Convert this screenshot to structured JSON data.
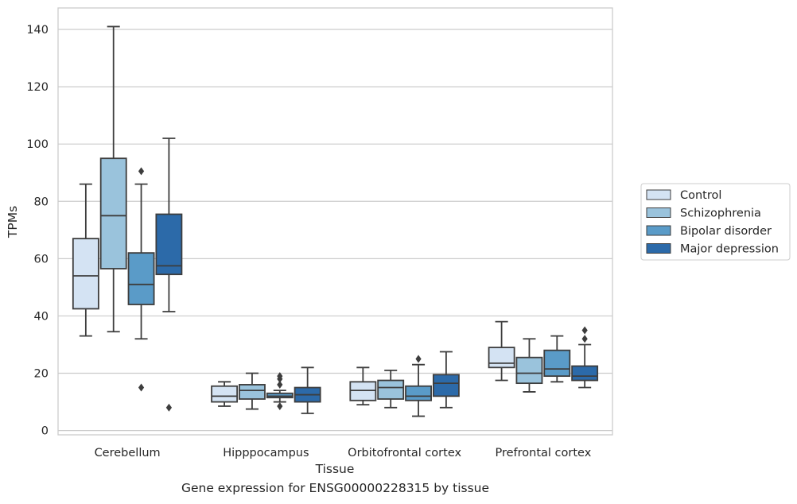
{
  "caption": "Gene expression for ENSG00000228315 by tissue",
  "chart_data": {
    "type": "box",
    "xlabel": "Tissue",
    "ylabel": "TPMs",
    "ylim": [
      -1.5,
      147.5
    ],
    "yticks": [
      0,
      20,
      40,
      60,
      80,
      100,
      120,
      140
    ],
    "grid": true,
    "legend_position": "right",
    "categories": [
      "Cerebellum",
      "Hipppocampus",
      "Orbitofrontal cortex",
      "Prefrontal cortex"
    ],
    "series": [
      {
        "name": "Control",
        "color": "#d4e3f3",
        "boxes": [
          {
            "whislo": 33,
            "q1": 42.5,
            "med": 54,
            "q3": 67,
            "whishi": 86,
            "fliers": []
          },
          {
            "whislo": 8.5,
            "q1": 10,
            "med": 12,
            "q3": 15.5,
            "whishi": 17,
            "fliers": []
          },
          {
            "whislo": 9,
            "q1": 10.5,
            "med": 14,
            "q3": 17,
            "whishi": 22,
            "fliers": []
          },
          {
            "whislo": 17.5,
            "q1": 22,
            "med": 23.5,
            "q3": 29,
            "whishi": 38,
            "fliers": []
          }
        ]
      },
      {
        "name": "Schizophrenia",
        "color": "#9ac3dc",
        "boxes": [
          {
            "whislo": 34.5,
            "q1": 56.5,
            "med": 75,
            "q3": 95,
            "whishi": 141,
            "fliers": []
          },
          {
            "whislo": 7.5,
            "q1": 11,
            "med": 14,
            "q3": 16,
            "whishi": 20,
            "fliers": []
          },
          {
            "whislo": 8,
            "q1": 11,
            "med": 15,
            "q3": 17.5,
            "whishi": 21,
            "fliers": []
          },
          {
            "whislo": 13.5,
            "q1": 16.5,
            "med": 20,
            "q3": 25.5,
            "whishi": 32,
            "fliers": []
          }
        ]
      },
      {
        "name": "Bipolar disorder",
        "color": "#5a9bc8",
        "boxes": [
          {
            "whislo": 32,
            "q1": 44,
            "med": 51,
            "q3": 62,
            "whishi": 86,
            "fliers": [
              90.5,
              15
            ]
          },
          {
            "whislo": 10,
            "q1": 11.5,
            "med": 12,
            "q3": 13,
            "whishi": 14,
            "fliers": [
              19,
              18,
              16,
              8.5
            ]
          },
          {
            "whislo": 5,
            "q1": 10.5,
            "med": 12,
            "q3": 15.5,
            "whishi": 23,
            "fliers": [
              25
            ]
          },
          {
            "whislo": 17,
            "q1": 19,
            "med": 21.5,
            "q3": 28,
            "whishi": 33,
            "fliers": []
          }
        ]
      },
      {
        "name": "Major depression",
        "color": "#2c6aa9",
        "boxes": [
          {
            "whislo": 41.5,
            "q1": 54.5,
            "med": 57.5,
            "q3": 75.5,
            "whishi": 102,
            "fliers": [
              8
            ]
          },
          {
            "whislo": 6,
            "q1": 10,
            "med": 12.5,
            "q3": 15,
            "whishi": 22,
            "fliers": []
          },
          {
            "whislo": 8,
            "q1": 12,
            "med": 16.5,
            "q3": 19.5,
            "whishi": 27.5,
            "fliers": []
          },
          {
            "whislo": 15,
            "q1": 17.5,
            "med": 19,
            "q3": 22.5,
            "whishi": 30,
            "fliers": [
              35,
              32
            ]
          }
        ]
      }
    ]
  }
}
